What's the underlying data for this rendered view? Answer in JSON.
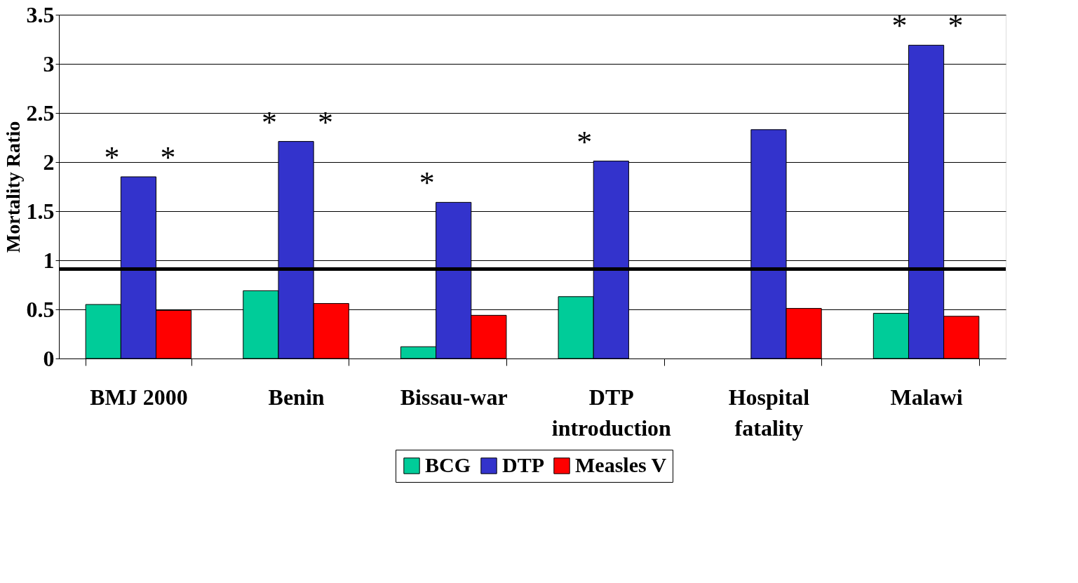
{
  "chart_data": {
    "type": "bar",
    "ylabel": "Mortality Ratio",
    "categories": [
      "BMJ 2000",
      "Benin",
      "Bissau-war",
      "DTP introduction",
      "Hospital fatality",
      "Malawi"
    ],
    "series": [
      {
        "name": "BCG",
        "color": "#00cc99",
        "values": [
          0.55,
          0.69,
          0.12,
          0.63,
          null,
          0.46
        ]
      },
      {
        "name": "DTP",
        "color": "#3333cc",
        "values": [
          1.85,
          2.21,
          1.59,
          2.01,
          2.33,
          3.19
        ]
      },
      {
        "name": "Measles V",
        "color": "#ff0000",
        "values": [
          0.49,
          0.56,
          0.44,
          null,
          0.51,
          0.43
        ]
      }
    ],
    "ylim": [
      0,
      3.5
    ],
    "yticks": [
      {
        "value": 0,
        "label": "0"
      },
      0.5,
      {
        "value": 1,
        "label": "1"
      },
      1.5,
      {
        "value": 2,
        "label": "2"
      },
      2.5,
      {
        "value": 3,
        "label": "3"
      },
      3.5
    ],
    "grid": "y",
    "legend": "bottom",
    "ref_lines": [
      {
        "axis": "y",
        "value": 0.91,
        "color": "#000000"
      }
    ],
    "annotations": [
      {
        "text": "*",
        "x": "BMJ 2000",
        "y": 1.85
      },
      {
        "text": "*",
        "x": "BMJ 2000",
        "y": 1.85
      },
      {
        "text": "*",
        "x": "Benin",
        "y": 2.21
      },
      {
        "text": "*",
        "x": "Benin",
        "y": 2.21
      },
      {
        "text": "*",
        "x": "Bissau-war",
        "y": 1.59
      },
      {
        "text": "*",
        "x": "DTP introduction",
        "y": 2.01
      },
      {
        "text": "*",
        "x": "Malawi",
        "y": 3.19
      },
      {
        "text": "*",
        "x": "Malawi",
        "y": 3.19
      }
    ]
  }
}
